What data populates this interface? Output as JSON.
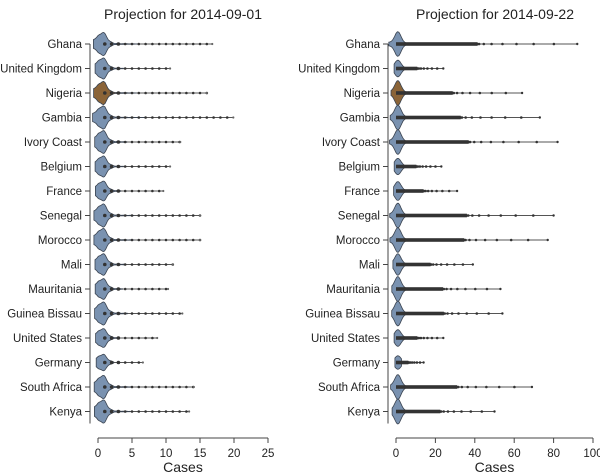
{
  "chart_data": [
    {
      "type": "violin",
      "title": "Projection for 2014-09-01",
      "xlabel": "Cases",
      "ylabel": "",
      "xlim": [
        0,
        25
      ],
      "xticks": [
        0,
        5,
        10,
        15,
        20,
        25
      ],
      "grid": false,
      "categories": [
        "Ghana",
        "United Kingdom",
        "Nigeria",
        "Gambia",
        "Ivory Coast",
        "Belgium",
        "France",
        "Senegal",
        "Morocco",
        "Mali",
        "Mauritania",
        "Guinea Bissau",
        "United States",
        "Germany",
        "South Africa",
        "Kenya"
      ],
      "max_values": [
        16.8,
        10.6,
        16.0,
        19.9,
        12.1,
        10.6,
        9.6,
        15.0,
        15.0,
        11.0,
        10.3,
        12.4,
        8.7,
        6.6,
        14.1,
        13.4
      ],
      "highlight": "Nigeria"
    },
    {
      "type": "violin",
      "title": "Projection for 2014-09-22",
      "xlabel": "Cases",
      "ylabel": "",
      "xlim": [
        0,
        100
      ],
      "xticks": [
        0,
        20,
        40,
        60,
        80,
        100
      ],
      "grid": false,
      "categories": [
        "Ghana",
        "United Kingdom",
        "Nigeria",
        "Gambia",
        "Ivory Coast",
        "Belgium",
        "France",
        "Senegal",
        "Morocco",
        "Mali",
        "Mauritania",
        "Guinea Bissau",
        "United States",
        "Germany",
        "South Africa",
        "Kenya"
      ],
      "max_values": [
        92,
        24,
        64,
        73,
        82,
        23,
        31,
        80,
        77,
        39,
        53,
        54,
        24,
        14,
        69,
        50
      ],
      "highlight": "Nigeria"
    }
  ],
  "colors": {
    "violin_fill": "#7a92b0",
    "highlight_fill": "#8b6438",
    "outline": "#3a4350",
    "points": "#333333"
  }
}
